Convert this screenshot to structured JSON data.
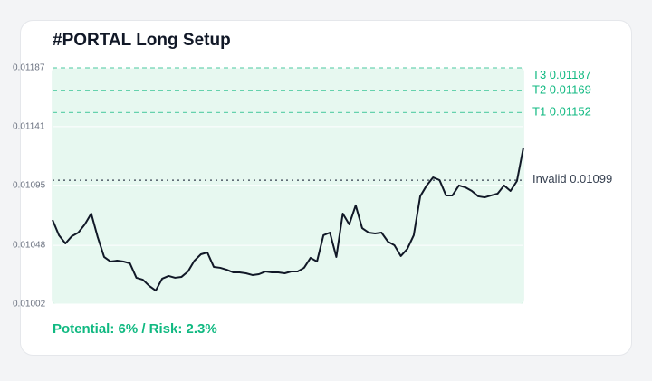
{
  "chart_data": {
    "type": "line",
    "title": "#PORTAL Long Setup",
    "series": [
      {
        "color": "#111827",
        "values": [
          0.010679,
          0.010559,
          0.010495,
          0.010552,
          0.01058,
          0.010644,
          0.010729,
          0.010545,
          0.010389,
          0.010353,
          0.01036,
          0.010353,
          0.010339,
          0.010226,
          0.010211,
          0.010162,
          0.010126,
          0.010219,
          0.01024,
          0.010226,
          0.010233,
          0.010275,
          0.01036,
          0.01041,
          0.010424,
          0.010311,
          0.010304,
          0.010289,
          0.010268,
          0.010268,
          0.010261,
          0.010247,
          0.010254,
          0.010275,
          0.010268,
          0.010268,
          0.010261,
          0.010275,
          0.010275,
          0.010304,
          0.010382,
          0.010353,
          0.010559,
          0.01058,
          0.010389,
          0.010729,
          0.010644,
          0.010793,
          0.010615,
          0.01058,
          0.010573,
          0.01058,
          0.010509,
          0.010481,
          0.010396,
          0.010452,
          0.010559,
          0.010864,
          0.010949,
          0.011012,
          0.010991,
          0.010871,
          0.010871,
          0.010949,
          0.010934,
          0.010906,
          0.010864,
          0.010856,
          0.010871,
          0.010885,
          0.010949,
          0.010906,
          0.010984,
          0.011246
        ]
      }
    ],
    "ylim": [
      0.01002,
      0.01187
    ],
    "yticks": [
      0.01002,
      0.01048,
      0.01095,
      0.01141,
      0.01187
    ],
    "grid": true,
    "levels": [
      {
        "label": "T3",
        "value": 0.01187,
        "color": "#10b981",
        "style": "dashed"
      },
      {
        "label": "T2",
        "value": 0.01169,
        "color": "#10b981",
        "style": "dashed"
      },
      {
        "label": "T1",
        "value": 0.01152,
        "color": "#10b981",
        "style": "dashed"
      },
      {
        "label": "Invalid",
        "value": 0.01099,
        "color": "#374151",
        "style": "dotted"
      }
    ],
    "footer": "Potential: 6% / Risk: 2.3%"
  }
}
